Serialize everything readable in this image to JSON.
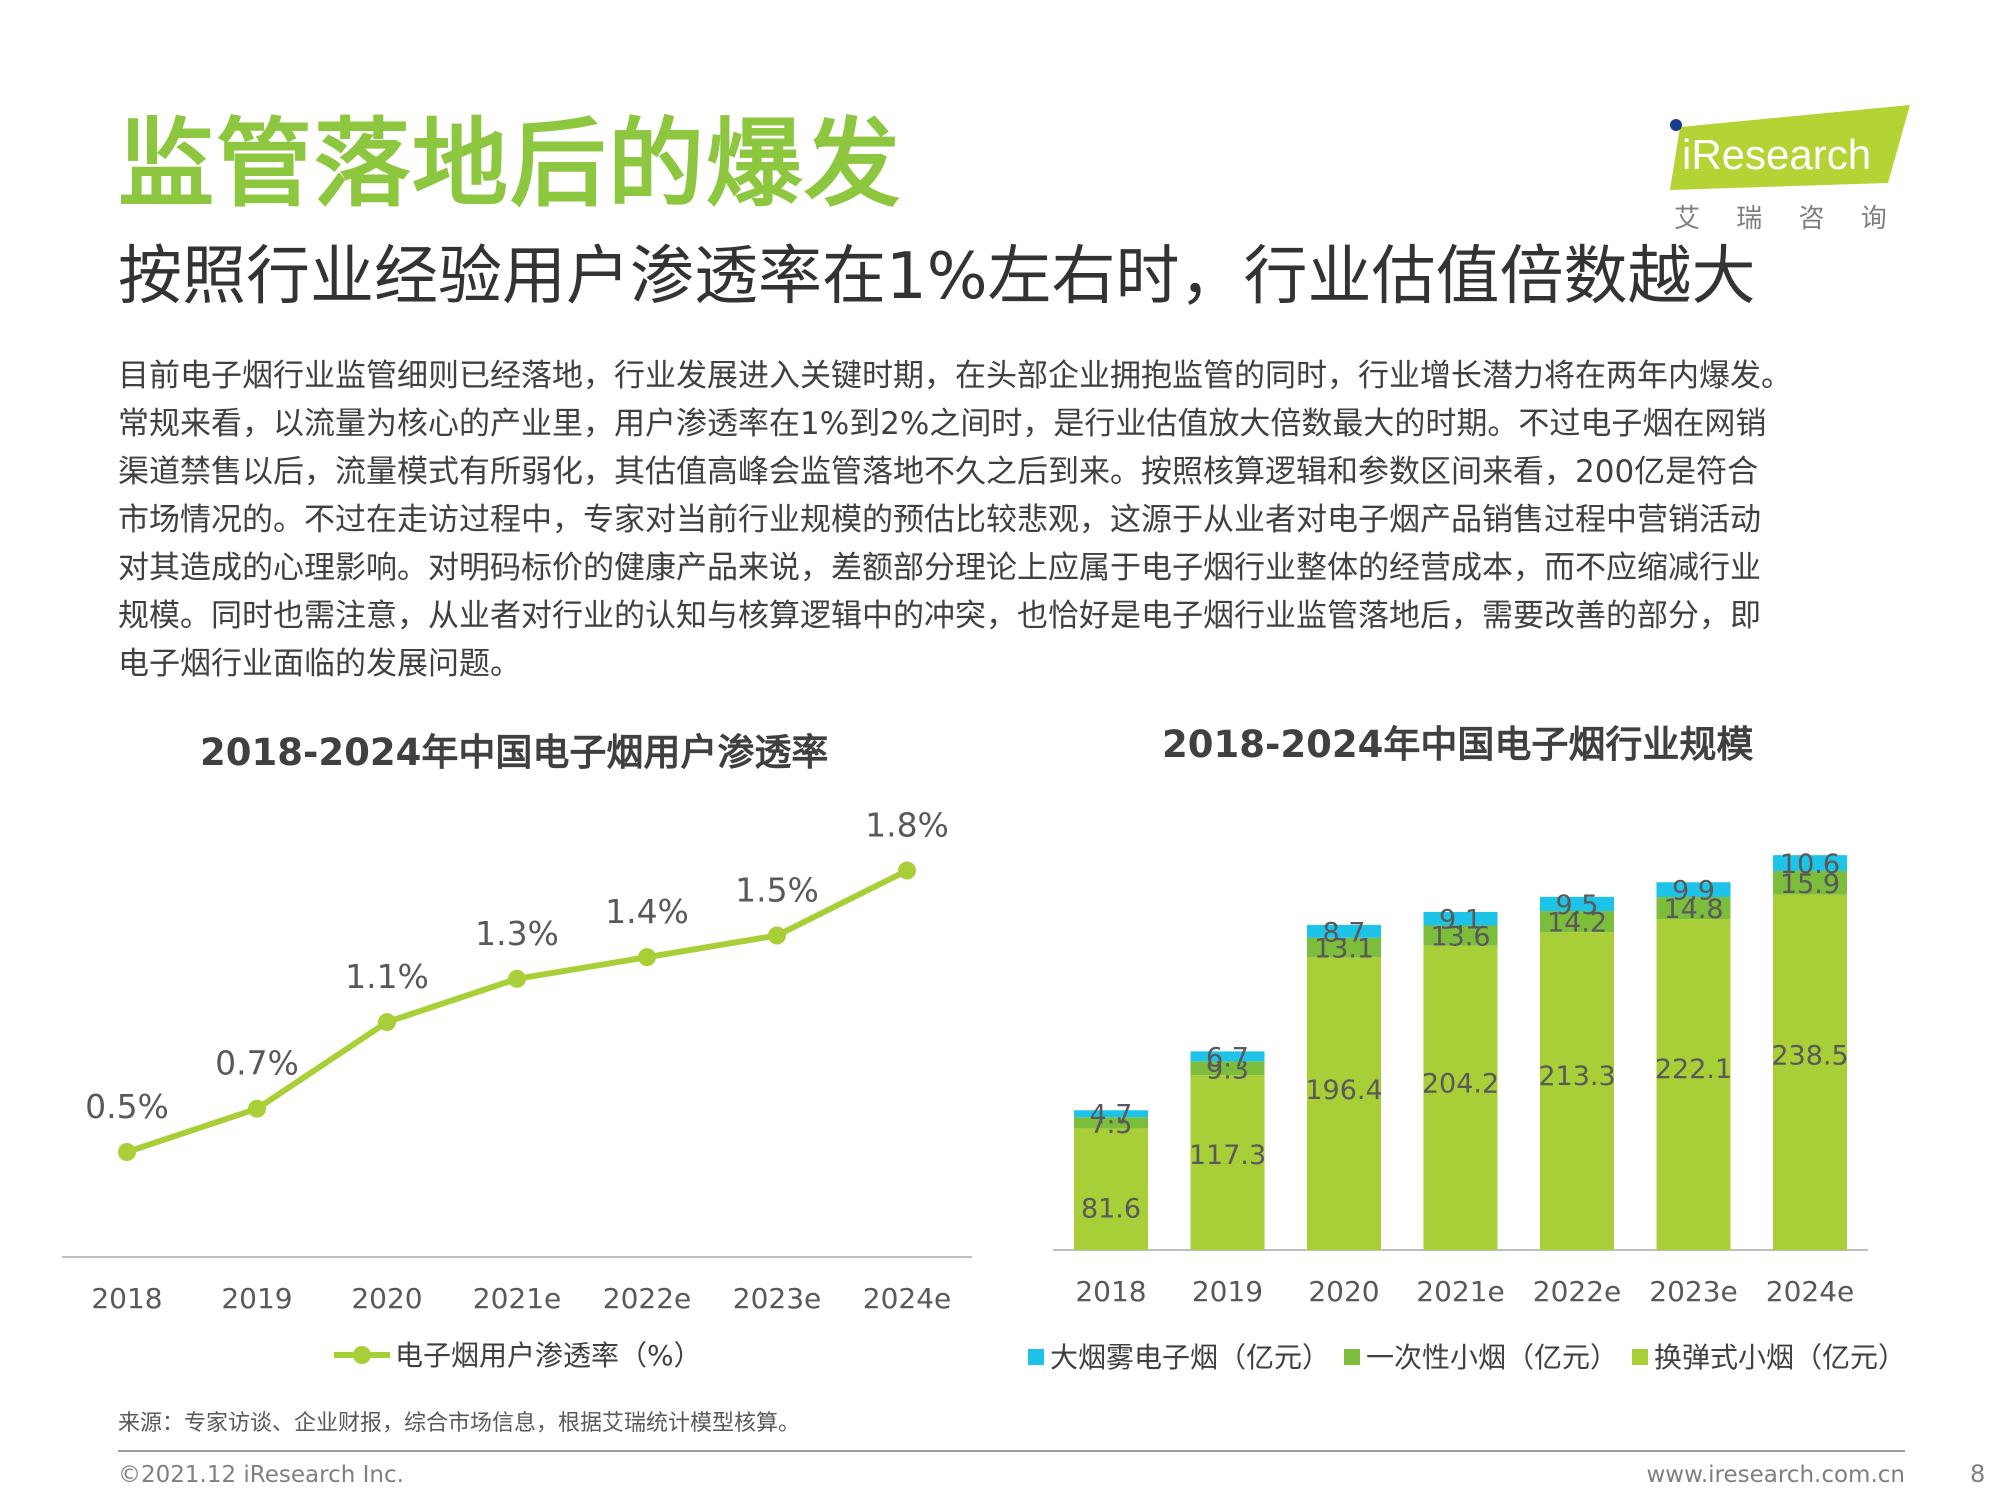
{
  "header": {
    "title": "监管落地后的爆发",
    "subtitle": "按照行业经验用户渗透率在1%左右时，行业估值倍数越大"
  },
  "logo": {
    "brand": "iResearch",
    "chinese": "艾 瑞 咨 询",
    "color": "#b4d335"
  },
  "body_lines": [
    "目前电子烟行业监管细则已经落地，行业发展进入关键时期，在头部企业拥抱监管的同时，行业增长潜力将在两年内爆发。",
    "常规来看，以流量为核心的产业里，用户渗透率在1%到2%之间时，是行业估值放大倍数最大的时期。不过电子烟在网销",
    "渠道禁售以后，流量模式有所弱化，其估值高峰会监管落地不久之后到来。按照核算逻辑和参数区间来看，200亿是符合",
    "市场情况的。不过在走访过程中，专家对当前行业规模的预估比较悲观，这源于从业者对电子烟产品销售过程中营销活动",
    "对其造成的心理影响。对明码标价的健康产品来说，差额部分理论上应属于电子烟行业整体的经营成本，而不应缩减行业",
    "规模。同时也需注意，从业者对行业的认知与核算逻辑中的冲突，也恰好是电子烟行业监管落地后，需要改善的部分，即",
    "电子烟行业面临的发展问题。"
  ],
  "chart_data": [
    {
      "type": "line",
      "title": "2018-2024年中国电子烟用户渗透率",
      "categories": [
        "2018",
        "2019",
        "2020",
        "2021e",
        "2022e",
        "2023e",
        "2024e"
      ],
      "series": [
        {
          "name": "电子烟用户渗透率（%）",
          "values": [
            0.5,
            0.7,
            1.1,
            1.3,
            1.4,
            1.5,
            1.8
          ],
          "color": "#a9cf38"
        }
      ],
      "data_labels": [
        "0.5%",
        "0.7%",
        "1.1%",
        "1.3%",
        "1.4%",
        "1.5%",
        "1.8%"
      ],
      "grid": false,
      "legend_position": "bottom"
    },
    {
      "type": "bar",
      "stacked": true,
      "title": "2018-2024年中国电子烟行业规模",
      "categories": [
        "2018",
        "2019",
        "2020",
        "2021e",
        "2022e",
        "2023e",
        "2024e"
      ],
      "series": [
        {
          "name": "换弹式小烟（亿元）",
          "values": [
            81.6,
            117.3,
            196.4,
            204.2,
            213.3,
            222.1,
            238.5
          ],
          "color": "#a9cf38"
        },
        {
          "name": "一次性小烟（亿元）",
          "values": [
            7.5,
            9.3,
            13.1,
            13.6,
            14.2,
            14.8,
            15.9
          ],
          "color": "#7cbe3c"
        },
        {
          "name": "大烟雾电子烟（亿元）",
          "values": [
            4.7,
            6.7,
            8.7,
            9.1,
            9.5,
            9.9,
            10.6
          ],
          "color": "#1ec3e8"
        }
      ],
      "legend_order": [
        "大烟雾电子烟（亿元）",
        "一次性小烟（亿元）",
        "换弹式小烟（亿元）"
      ],
      "grid": false,
      "legend_position": "bottom"
    }
  ],
  "source": "来源：专家访谈、企业财报，综合市场信息，根据艾瑞统计模型核算。",
  "footer": {
    "copyright": "©2021.12 iResearch Inc.",
    "website": "www.iresearch.com.cn",
    "page": "8"
  }
}
